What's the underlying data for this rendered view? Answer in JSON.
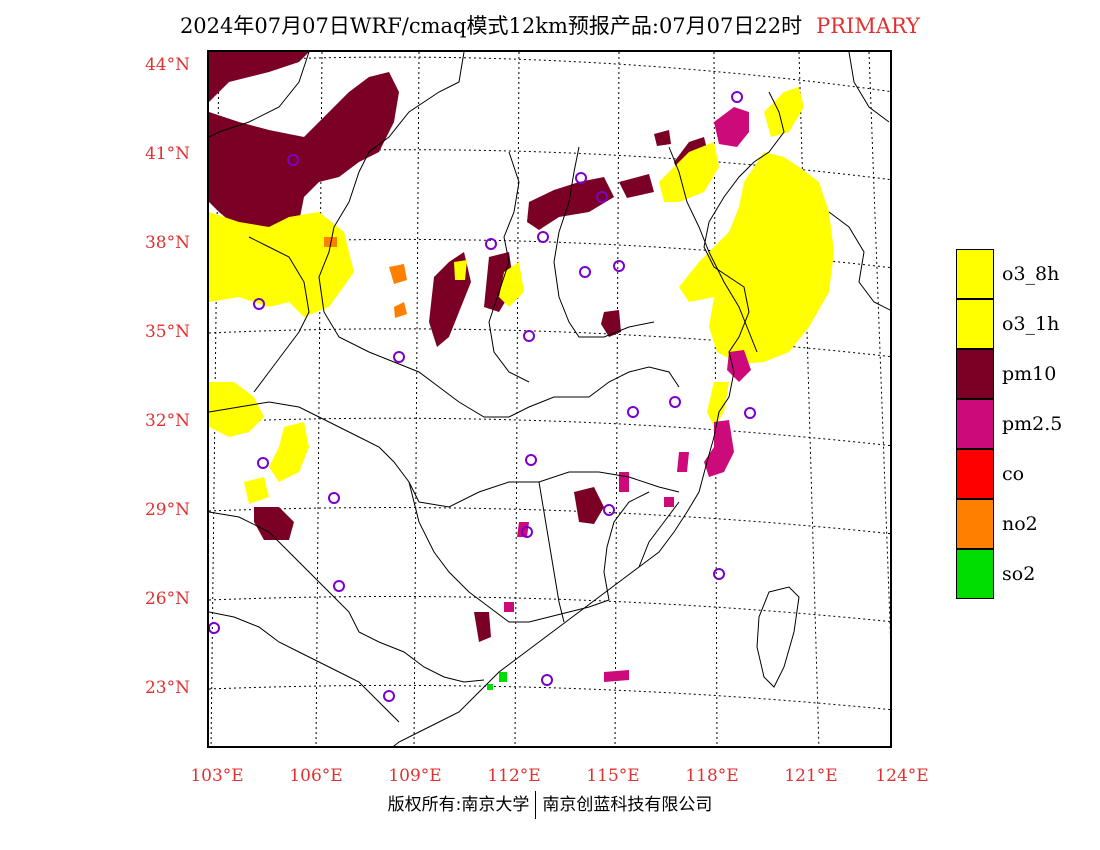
{
  "header": {
    "title": "2024年07月07日WRF/cmaq模式12km预报产品:07月07日22时",
    "tag": "PRIMARY"
  },
  "map": {
    "lat_labels": [
      "44°N",
      "41°N",
      "38°N",
      "35°N",
      "32°N",
      "29°N",
      "26°N",
      "23°N"
    ],
    "lon_labels": [
      "103°E",
      "106°E",
      "109°E",
      "112°E",
      "115°E",
      "118°E",
      "121°E",
      "124°E"
    ]
  },
  "legend": {
    "items": [
      {
        "label": "o3_8h",
        "color": "#ffff00"
      },
      {
        "label": "o3_1h",
        "color": "#ffff00"
      },
      {
        "label": "pm10",
        "color": "#7a0026"
      },
      {
        "label": "pm2.5",
        "color": "#cc0a7a"
      },
      {
        "label": "co",
        "color": "#ff0000"
      },
      {
        "label": "no2",
        "color": "#ff7f00"
      },
      {
        "label": "so2",
        "color": "#00dd00"
      }
    ]
  },
  "footer": {
    "left": "版权所有:南京大学",
    "right": "南京创蓝科技有限公司"
  }
}
